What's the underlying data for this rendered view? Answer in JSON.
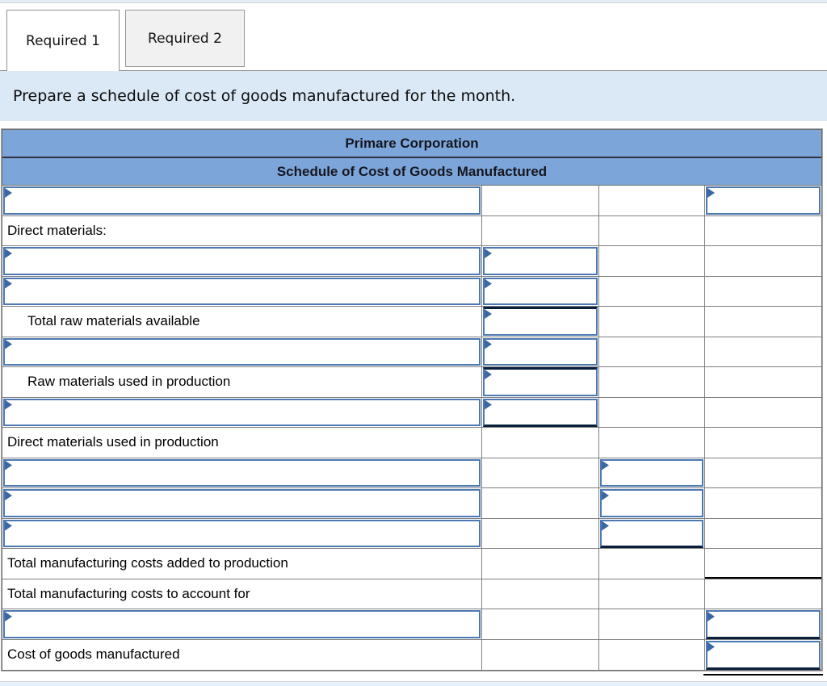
{
  "tabs": [
    {
      "label": "Required 1",
      "active": true
    },
    {
      "label": "Required 2",
      "active": false
    }
  ],
  "instruction": "Prepare a schedule of cost of goods manufactured for the month.",
  "table": {
    "title": "Primare Corporation",
    "subtitle": "Schedule of Cost of Goods Manufactured",
    "columns": 4,
    "rows": [
      {
        "label": "",
        "indent": 0,
        "inputs": [
          1,
          4
        ]
      },
      {
        "label": "Direct materials:",
        "indent": 0,
        "inputs": []
      },
      {
        "label": "",
        "indent": 0,
        "inputs": [
          1,
          2
        ]
      },
      {
        "label": "",
        "indent": 0,
        "inputs": [
          1,
          2
        ]
      },
      {
        "label": "Total raw materials available",
        "indent": 1,
        "inputs": [
          2
        ],
        "dark_top": [
          2
        ]
      },
      {
        "label": "",
        "indent": 0,
        "inputs": [
          1,
          2
        ]
      },
      {
        "label": "Raw materials used in production",
        "indent": 1,
        "inputs": [
          2
        ],
        "dark_top": [
          2
        ]
      },
      {
        "label": "",
        "indent": 0,
        "inputs": [
          1,
          2
        ],
        "dark_bottom": [
          2
        ]
      },
      {
        "label": "Direct materials used in production",
        "indent": 0,
        "inputs": []
      },
      {
        "label": "",
        "indent": 0,
        "inputs": [
          1,
          3
        ]
      },
      {
        "label": "",
        "indent": 0,
        "inputs": [
          1,
          3
        ]
      },
      {
        "label": "",
        "indent": 0,
        "inputs": [
          1,
          3
        ],
        "dark_bottom": [
          3
        ]
      },
      {
        "label": "Total manufacturing costs added to production",
        "indent": 0,
        "inputs": [],
        "rules_bottom": [
          4
        ]
      },
      {
        "label": "Total manufacturing costs to account for",
        "indent": 0,
        "inputs": []
      },
      {
        "label": "",
        "indent": 0,
        "inputs": [
          1,
          4
        ],
        "dark_bottom": [
          4
        ]
      },
      {
        "label": "Cost of goods manufactured",
        "indent": 0,
        "inputs": [
          4
        ],
        "dark_bottom": [
          4
        ],
        "double_under": [
          4
        ]
      }
    ]
  },
  "icons": {
    "cell_marker": "right-pointing-triangle"
  },
  "colors": {
    "header_bg": "#7ca6da",
    "header_text": "#16161f",
    "instruction_bg": "#dbe9f7",
    "input_border": "#4d79b3",
    "marker_blue": "#3b67a5",
    "grid_border": "#7f7f7f",
    "dark_rule": "#0a1f3c",
    "black_rule": "#000000",
    "inactive_tab_bg": "#f1f1f1"
  }
}
